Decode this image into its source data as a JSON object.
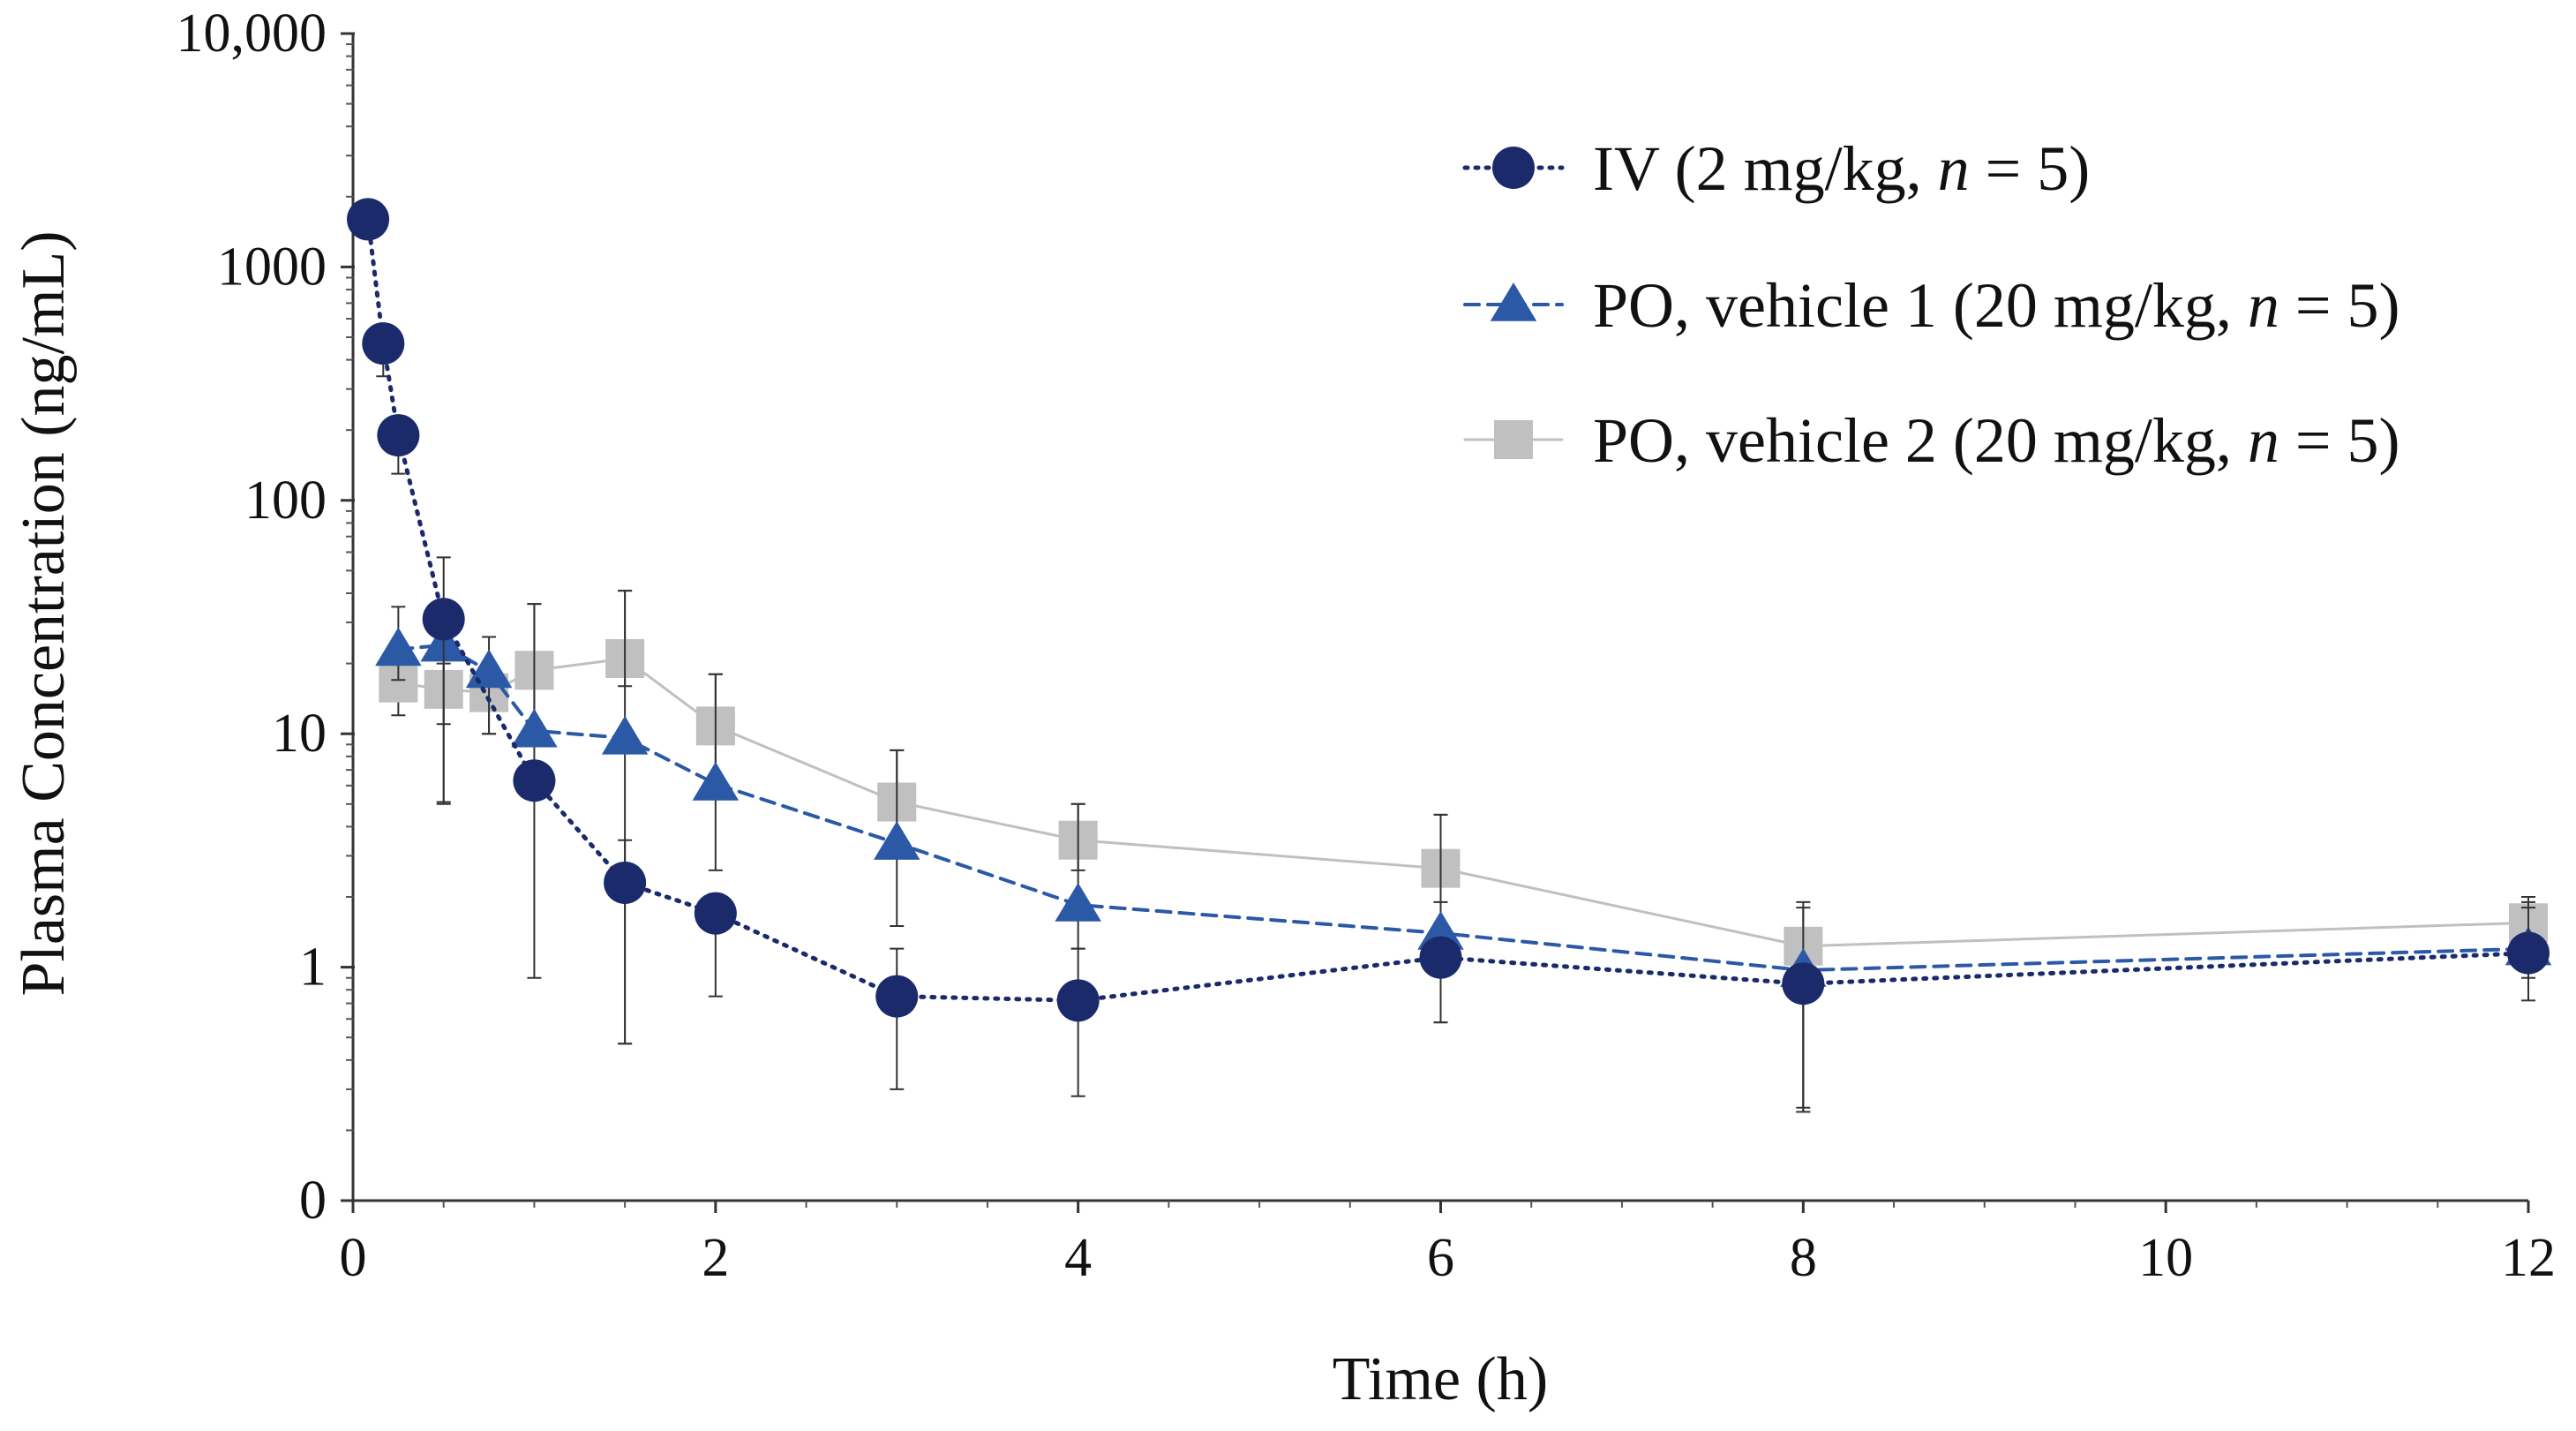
{
  "chart_data": {
    "type": "line",
    "title": "",
    "xlabel": "Time (h)",
    "ylabel": "Plasma Concentration (ng/mL)",
    "xlim": [
      0,
      12
    ],
    "yscale": "log",
    "ylim": [
      0.1,
      10000
    ],
    "x_ticks": [
      0,
      2,
      4,
      6,
      8,
      10,
      12
    ],
    "x_tick_labels": [
      "0",
      "2",
      "4",
      "6",
      "8",
      "10",
      "12"
    ],
    "y_ticks": [
      0.1,
      1,
      10,
      100,
      1000,
      10000
    ],
    "y_tick_labels": [
      "0",
      "1",
      "10",
      "100",
      "1000",
      "10,000"
    ],
    "grid": false,
    "legend_position": "top-right",
    "series": [
      {
        "name_main": "IV (2 mg/kg, ",
        "name_italic": "n",
        "name_end": " = 5)",
        "color": "#1b2a6b",
        "marker": "circle",
        "line": "dotted",
        "x": [
          0.083,
          0.167,
          0.25,
          0.5,
          1,
          1.5,
          2,
          3,
          4,
          6,
          8,
          12
        ],
        "y": [
          1600,
          470,
          190,
          31,
          6.3,
          2.3,
          1.7,
          0.75,
          0.72,
          1.1,
          0.85,
          1.15
        ],
        "err_low": [
          1600,
          340,
          130,
          5.0,
          0.9,
          0.47,
          0.75,
          0.3,
          0.28,
          0.58,
          0.24,
          0.72
        ],
        "err_high": [
          1600,
          470,
          190,
          57,
          6.3,
          3.5,
          1.7,
          1.2,
          1.2,
          1.1,
          0.85,
          1.8
        ]
      },
      {
        "name_main": "PO, vehicle 1 (20 mg/kg, ",
        "name_italic": "n",
        "name_end": " = 5)",
        "color": "#2b59a6",
        "marker": "triangle",
        "line": "dashed",
        "x": [
          0.25,
          0.5,
          0.75,
          1,
          1.5,
          2,
          3,
          4,
          6,
          8,
          12
        ],
        "y": [
          23,
          24,
          18.5,
          10.3,
          9.6,
          6.1,
          3.4,
          1.85,
          1.4,
          0.97,
          1.2
        ],
        "err_low": [
          17,
          5.1,
          10,
          6.3,
          0.47,
          2.6,
          1.5,
          1.2,
          0.58,
          0.24,
          0.9
        ],
        "err_high": [
          35,
          33,
          26,
          36,
          41,
          18,
          8.5,
          5.0,
          4.5,
          1.9,
          1.9
        ]
      },
      {
        "name_main": "PO, vehicle 2 (20 mg/kg, ",
        "name_italic": "n",
        "name_end": " = 5)",
        "color": "#c0c0c0",
        "marker": "square",
        "line": "solid",
        "x": [
          0.25,
          0.5,
          0.75,
          1,
          1.5,
          2,
          3,
          4,
          6,
          8,
          12
        ],
        "y": [
          16.5,
          15.5,
          15,
          18.7,
          21,
          10.8,
          5.1,
          3.5,
          2.65,
          1.23,
          1.55
        ],
        "err_low": [
          12,
          11,
          10,
          10,
          16,
          6,
          3.5,
          2.6,
          1.9,
          0.25,
          1.2
        ],
        "err_high": [
          22,
          20,
          20,
          36,
          41,
          18,
          8.5,
          5.0,
          4.5,
          1.8,
          2.0
        ]
      }
    ]
  }
}
